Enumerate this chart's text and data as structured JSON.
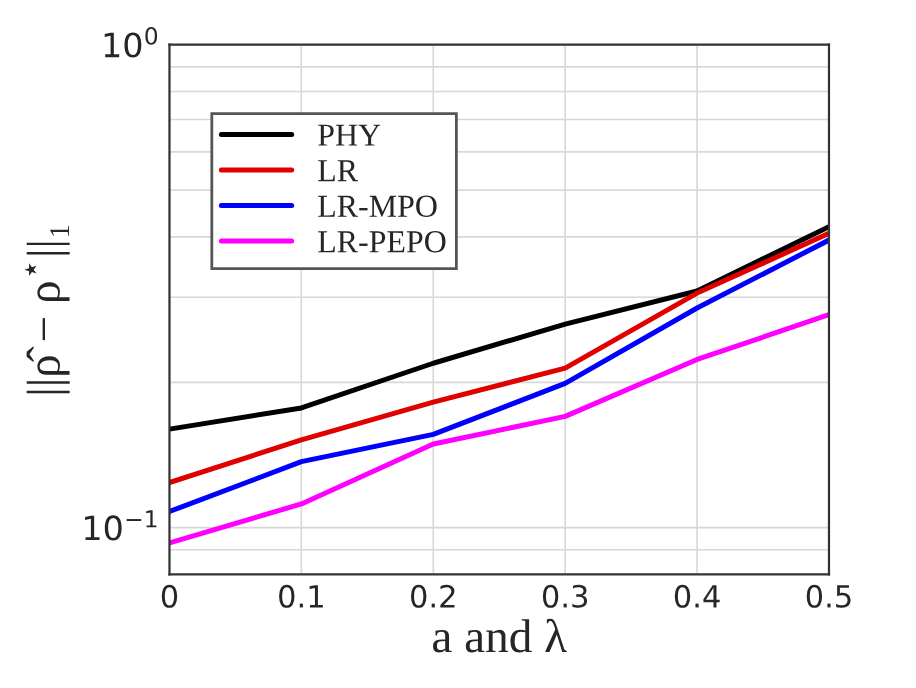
{
  "chart_data": {
    "type": "line",
    "xlabel": "a and λ",
    "ylabel": "||ρ̂ − ρ$^{⋆}$||₁",
    "x": [
      0,
      0.1,
      0.2,
      0.3,
      0.4,
      0.5
    ],
    "series": [
      {
        "name": "PHY",
        "color": "#000000",
        "values": [
          0.16,
          0.177,
          0.219,
          0.264,
          0.309,
          0.42
        ]
      },
      {
        "name": "LR",
        "color": "#e00000",
        "values": [
          0.124,
          0.152,
          0.182,
          0.214,
          0.306,
          0.407
        ]
      },
      {
        "name": "LR-MPO",
        "color": "#0000ff",
        "values": [
          0.108,
          0.137,
          0.156,
          0.199,
          0.285,
          0.394
        ]
      },
      {
        "name": "LR-PEPO",
        "color": "#ff00ff",
        "values": [
          0.093,
          0.112,
          0.149,
          0.17,
          0.223,
          0.276
        ]
      }
    ],
    "log": "y",
    "xlim": [
      0,
      0.5
    ],
    "ylim": [
      0.08,
      1
    ],
    "xticks": [
      0,
      0.1,
      0.2,
      0.3,
      0.4,
      0.5
    ],
    "yticks": [
      {
        "value": 0.1,
        "label": "10$^{−1}$"
      },
      {
        "value": 1,
        "label": "10$^{0}$"
      }
    ],
    "grid": true,
    "legend": "top left",
    "marker": "none",
    "line_style": "solid"
  }
}
